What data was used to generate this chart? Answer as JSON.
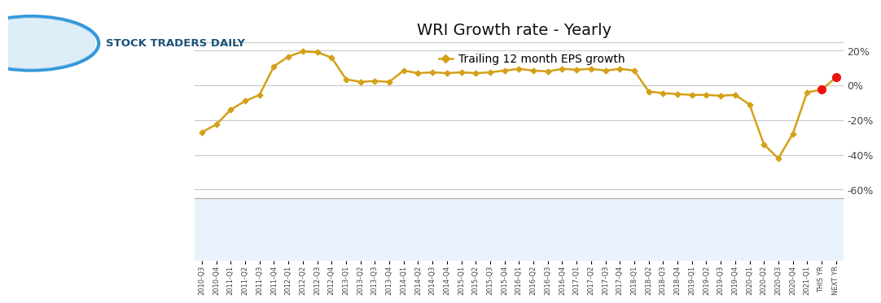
{
  "title": "WRI Growth rate - Yearly",
  "legend_label": "Trailing 12 month EPS growth",
  "line_color": "#D4A017",
  "red_color": "#EE1111",
  "background_color": "#FFFFFF",
  "grid_color": "#C8C8C8",
  "logo_text": "STOCK TRADERS DAILY",
  "logo_text_color": "#1A5276",
  "x_labels": [
    "2010-Q3",
    "2010-Q4",
    "2011-Q1",
    "2011-Q2",
    "2011-Q3",
    "2011-Q4",
    "2012-Q1",
    "2012-Q2",
    "2012-Q3",
    "2012-Q4",
    "2013-Q1",
    "2013-Q2",
    "2013-Q3",
    "2013-Q4",
    "2014-Q1",
    "2014-Q2",
    "2014-Q3",
    "2014-Q4",
    "2015-Q1",
    "2015-Q2",
    "2015-Q3",
    "2015-Q4",
    "2016-Q1",
    "2016-Q2",
    "2016-Q3",
    "2016-Q4",
    "2017-Q1",
    "2017-Q2",
    "2017-Q3",
    "2017-Q4",
    "2018-Q1",
    "2018-Q2",
    "2018-Q3",
    "2018-Q4",
    "2019-Q1",
    "2019-Q2",
    "2019-Q3",
    "2019-Q4",
    "2020-Q1",
    "2020-Q2",
    "2020-Q3",
    "2020-Q4",
    "2021-Q1",
    "THIS YR",
    "NEXT YR"
  ],
  "values": [
    -27.0,
    -22.5,
    -14.0,
    -9.0,
    -5.5,
    11.0,
    16.5,
    19.5,
    19.0,
    16.0,
    3.5,
    2.0,
    2.5,
    2.0,
    8.5,
    7.0,
    7.5,
    7.0,
    7.5,
    7.0,
    7.5,
    8.5,
    9.5,
    8.5,
    8.0,
    9.5,
    9.0,
    9.5,
    8.5,
    9.5,
    8.5,
    -3.5,
    -4.5,
    -5.0,
    -5.5,
    -5.5,
    -6.0,
    -5.5,
    -11.0,
    -34.0,
    -42.0,
    -28.0,
    -4.0,
    -2.5,
    4.5
  ],
  "red_indices": [
    43,
    44
  ],
  "ylim": [
    -65,
    25
  ],
  "yticks": [
    20,
    0,
    -20,
    -40,
    -60
  ],
  "ytick_labels": [
    "20%",
    "0%",
    "-20%",
    "-40%",
    "-60%"
  ],
  "xtick_band_color": "#EAF2FB",
  "divider_line_color": "#AAAAAA",
  "logo_circle_color": "#3498DB"
}
